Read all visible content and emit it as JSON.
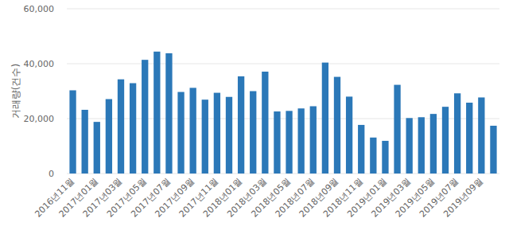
{
  "chart_data": {
    "type": "bar",
    "y_label": "거래량(건수)",
    "categories": [
      "2016년11월",
      null,
      "2017년01월",
      null,
      "2017년03월",
      null,
      "2017년05월",
      null,
      "2017년07월",
      null,
      "2017년09월",
      null,
      "2017년11월",
      null,
      "2018년01월",
      null,
      "2018년03월",
      null,
      "2018년05월",
      null,
      "2018년07월",
      null,
      "2018년09월",
      null,
      "2018년11월",
      null,
      "2019년01월",
      null,
      "2019년03월",
      null,
      "2019년05월",
      null,
      "2019년07월",
      null,
      "2019년09월",
      null
    ],
    "values": [
      30300,
      23200,
      18800,
      27100,
      34300,
      32900,
      41400,
      44400,
      43800,
      29700,
      31200,
      26900,
      29400,
      27900,
      35400,
      30000,
      37100,
      22600,
      22800,
      23700,
      24500,
      40400,
      35200,
      28000,
      17700,
      13100,
      11900,
      32300,
      20200,
      20500,
      21700,
      24300,
      29200,
      25800,
      27700,
      17400
    ],
    "color": "#2b78b8",
    "ylim": [
      0,
      60000
    ],
    "yticks": [
      0,
      {
        "value": 20000,
        "label": "20,000"
      },
      {
        "value": 40000,
        "label": "40,000"
      },
      {
        "value": 60000,
        "label": "60,000"
      }
    ],
    "grid": true
  }
}
